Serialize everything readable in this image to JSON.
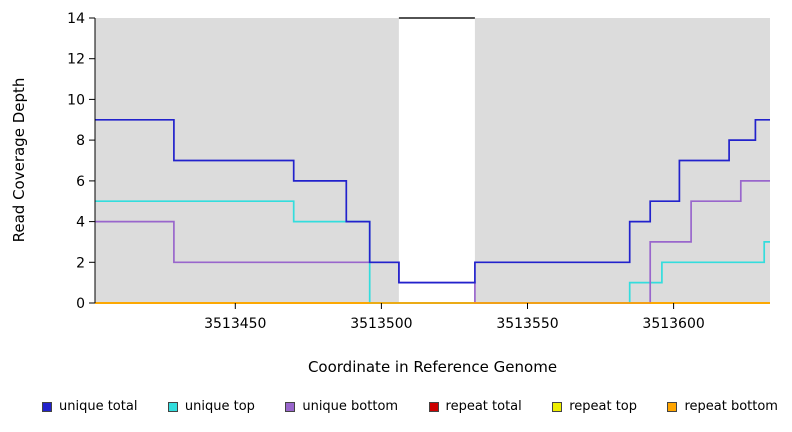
{
  "chart_data": {
    "type": "line",
    "step": true,
    "title": "",
    "xlabel": "Coordinate in Reference Genome",
    "ylabel": "Read Coverage Depth",
    "xlim": [
      3513402,
      3513633
    ],
    "ylim": [
      0,
      14
    ],
    "xticks": [
      3513450,
      3513500,
      3513550,
      3513600
    ],
    "yticks": [
      0,
      2,
      4,
      6,
      8,
      10,
      12,
      14
    ],
    "grid": false,
    "legend_position": "bottom",
    "plot_background": "#ffffff",
    "background_regions": [
      {
        "x0": 3513402,
        "x1": 3513506,
        "color": "#DCDCDC"
      },
      {
        "x0": 3513532,
        "x1": 3513633,
        "color": "#DCDCDC"
      }
    ],
    "gap_top_line": {
      "x0": 3513506,
      "x1": 3513532,
      "y": 14,
      "color": "#1a1a1a"
    },
    "series": [
      {
        "name": "repeat total",
        "color": "#CC0000",
        "points": [
          [
            3513402,
            0
          ],
          [
            3513633,
            0
          ]
        ]
      },
      {
        "name": "repeat top",
        "color": "#EEEE00",
        "points": [
          [
            3513402,
            0
          ],
          [
            3513633,
            0
          ]
        ]
      },
      {
        "name": "unique top",
        "color": "#33DDDD",
        "points": [
          [
            3513402,
            5
          ],
          [
            3513470,
            4
          ],
          [
            3513496,
            0
          ],
          [
            3513585,
            1
          ],
          [
            3513596,
            2
          ],
          [
            3513631,
            3
          ],
          [
            3513633,
            3
          ]
        ]
      },
      {
        "name": "unique bottom",
        "color": "#9966CC",
        "points": [
          [
            3513402,
            4
          ],
          [
            3513429,
            2
          ],
          [
            3513506,
            1
          ],
          [
            3513532,
            0
          ],
          [
            3513592,
            3
          ],
          [
            3513606,
            5
          ],
          [
            3513623,
            6
          ],
          [
            3513633,
            6
          ]
        ]
      },
      {
        "name": "repeat bottom",
        "color": "#FFA500",
        "points": [
          [
            3513402,
            0
          ],
          [
            3513633,
            0
          ]
        ]
      },
      {
        "name": "unique total",
        "color": "#2222CC",
        "points": [
          [
            3513402,
            9
          ],
          [
            3513429,
            7
          ],
          [
            3513470,
            6
          ],
          [
            3513488,
            4
          ],
          [
            3513496,
            2
          ],
          [
            3513506,
            1
          ],
          [
            3513532,
            2
          ],
          [
            3513585,
            4
          ],
          [
            3513592,
            5
          ],
          [
            3513602,
            7
          ],
          [
            3513619,
            8
          ],
          [
            3513628,
            9
          ],
          [
            3513633,
            9
          ]
        ]
      }
    ]
  },
  "legend": {
    "items": [
      {
        "label": "unique total",
        "color": "#2222CC"
      },
      {
        "label": "unique top",
        "color": "#33DDDD"
      },
      {
        "label": "unique bottom",
        "color": "#9966CC"
      },
      {
        "label": "repeat total",
        "color": "#CC0000"
      },
      {
        "label": "repeat top",
        "color": "#EEEE00"
      },
      {
        "label": "repeat bottom",
        "color": "#FFA500"
      }
    ]
  }
}
